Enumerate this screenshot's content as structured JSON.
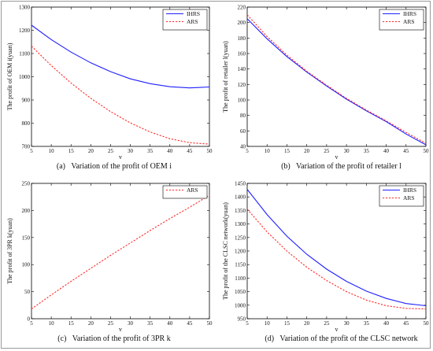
{
  "chart_data": [
    {
      "type": "line",
      "caption": "(a)   Variation of the profit of OEM i",
      "xlabel": "v",
      "ylabel": "The profit of OEM i(yuan)",
      "xlim": [
        5,
        50
      ],
      "ylim": [
        700,
        1300
      ],
      "xticks": [
        5,
        10,
        15,
        20,
        25,
        30,
        35,
        40,
        45,
        50
      ],
      "yticks": [
        700,
        800,
        900,
        1000,
        1100,
        1200,
        1300
      ],
      "legend_position": "top-right",
      "series": [
        {
          "name": "IHRS",
          "style": "solid",
          "color": "#1f1fff",
          "x": [
            5,
            10,
            15,
            20,
            25,
            30,
            35,
            40,
            45,
            50
          ],
          "y": [
            1222,
            1160,
            1106,
            1060,
            1022,
            991,
            970,
            957,
            952,
            956
          ]
        },
        {
          "name": "ARS",
          "style": "dotted",
          "color": "#ff2a2a",
          "x": [
            5,
            10,
            15,
            20,
            25,
            30,
            35,
            40,
            45,
            50
          ],
          "y": [
            1132,
            1048,
            973,
            907,
            850,
            801,
            762,
            733,
            716,
            710
          ]
        }
      ]
    },
    {
      "type": "line",
      "caption": "(b)   Variation of the profit of retailer l",
      "xlabel": "v",
      "ylabel": "The profit of retailer l(yuan)",
      "xlim": [
        5,
        50
      ],
      "ylim": [
        40,
        220
      ],
      "xticks": [
        5,
        10,
        15,
        20,
        25,
        30,
        35,
        40,
        45,
        50
      ],
      "yticks": [
        40,
        60,
        80,
        100,
        120,
        140,
        160,
        180,
        200,
        220
      ],
      "legend_position": "top-right",
      "series": [
        {
          "name": "IHRS",
          "style": "solid",
          "color": "#1f1fff",
          "x": [
            5,
            10,
            15,
            20,
            25,
            30,
            35,
            40,
            45,
            50
          ],
          "y": [
            205,
            179,
            156,
            136,
            118,
            101,
            86,
            72,
            56,
            42
          ]
        },
        {
          "name": "ARS",
          "style": "dotted",
          "color": "#ff2a2a",
          "x": [
            5,
            10,
            15,
            20,
            25,
            30,
            35,
            40,
            45,
            50
          ],
          "y": [
            210,
            182,
            158,
            137,
            119,
            102,
            87,
            73,
            58,
            44
          ]
        }
      ]
    },
    {
      "type": "line",
      "caption": "(c)   Variation of the profit of 3PR k",
      "xlabel": "v",
      "ylabel": "The profit of 3PR k(yuan)",
      "xlim": [
        5,
        50
      ],
      "ylim": [
        0,
        250
      ],
      "xticks": [
        5,
        10,
        15,
        20,
        25,
        30,
        35,
        40,
        45,
        50
      ],
      "yticks": [
        0,
        50,
        100,
        150,
        200,
        250
      ],
      "legend_position": "top-right",
      "series": [
        {
          "name": "ARS",
          "style": "dotted",
          "color": "#ff2a2a",
          "x": [
            5,
            10,
            15,
            20,
            25,
            30,
            35,
            40,
            45,
            50
          ],
          "y": [
            18,
            44,
            69,
            93,
            117,
            140,
            163,
            185,
            206,
            228
          ]
        }
      ]
    },
    {
      "type": "line",
      "caption": "(d)   Variation of the profit of the CLSC network",
      "xlabel": "v",
      "ylabel": "The profit of the CLSC network(yuan)",
      "xlim": [
        5,
        50
      ],
      "ylim": [
        950,
        1450
      ],
      "xticks": [
        5,
        10,
        15,
        20,
        25,
        30,
        35,
        40,
        45,
        50
      ],
      "yticks": [
        950,
        1000,
        1050,
        1100,
        1150,
        1200,
        1250,
        1300,
        1350,
        1400,
        1450
      ],
      "legend_position": "top-right",
      "series": [
        {
          "name": "IHRS",
          "style": "solid",
          "color": "#1f1fff",
          "x": [
            5,
            10,
            15,
            20,
            25,
            30,
            35,
            40,
            45,
            50
          ],
          "y": [
            1428,
            1335,
            1255,
            1188,
            1133,
            1088,
            1052,
            1025,
            1006,
            998
          ]
        },
        {
          "name": "ARS",
          "style": "dotted",
          "color": "#ff2a2a",
          "x": [
            5,
            10,
            15,
            20,
            25,
            30,
            35,
            40,
            45,
            50
          ],
          "y": [
            1355,
            1271,
            1200,
            1140,
            1091,
            1050,
            1019,
            998,
            988,
            986
          ]
        }
      ]
    }
  ]
}
